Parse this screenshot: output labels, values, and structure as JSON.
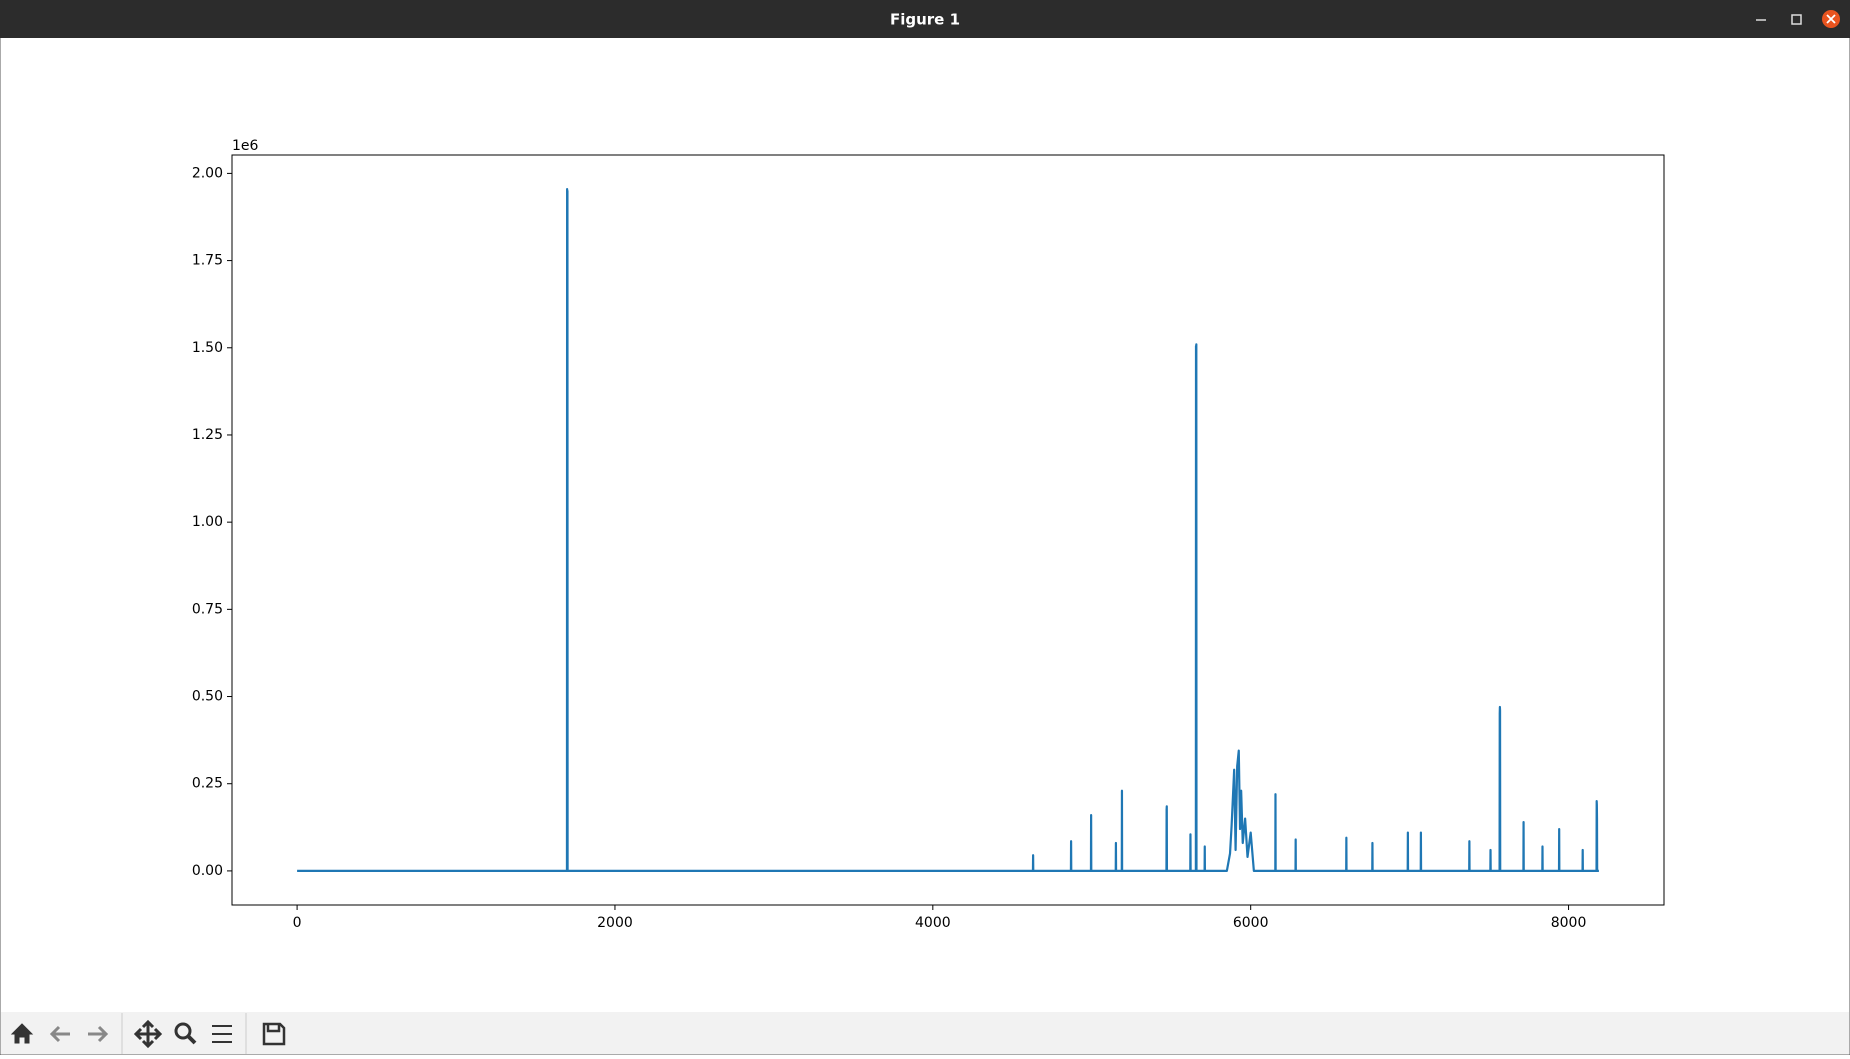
{
  "window": {
    "title": "Figure 1"
  },
  "chart_data": {
    "type": "line",
    "color": "#1f77b4",
    "x": [
      0,
      1698,
      1699,
      1700,
      1701,
      1702,
      1703,
      4630,
      4631,
      4632,
      4869,
      4870,
      4871,
      4995,
      4996,
      4997,
      5151,
      5152,
      5153,
      5189,
      5190,
      5191,
      5470,
      5471,
      5472,
      5473,
      5620,
      5621,
      5622,
      5655,
      5656,
      5657,
      5658,
      5659,
      5710,
      5711,
      5712,
      5850,
      5870,
      5880,
      5896,
      5905,
      5915,
      5925,
      5933,
      5940,
      5950,
      5965,
      5980,
      6000,
      6020,
      6155,
      6156,
      6157,
      6282,
      6283,
      6284,
      6601,
      6602,
      6603,
      6765,
      6766,
      6767,
      6988,
      6989,
      6990,
      7070,
      7071,
      7072,
      7375,
      7376,
      7377,
      7508,
      7509,
      7510,
      7566,
      7567,
      7568,
      7569,
      7570,
      7716,
      7717,
      7718,
      7835,
      7836,
      7837,
      7940,
      7941,
      7942,
      8088,
      8089,
      8090,
      8176,
      8177,
      8178,
      8179,
      8180,
      8191
    ],
    "values": [
      0,
      0,
      1955000,
      1600000,
      1950000,
      0,
      0,
      0,
      45000,
      0,
      0,
      85000,
      0,
      0,
      160000,
      0,
      0,
      80000,
      0,
      0,
      230000,
      0,
      0,
      175000,
      185000,
      0,
      0,
      105000,
      0,
      0,
      1505000,
      1240000,
      1510000,
      0,
      0,
      70000,
      0,
      0,
      50000,
      130000,
      290000,
      60000,
      300000,
      345000,
      120000,
      230000,
      80000,
      150000,
      40000,
      110000,
      0,
      0,
      220000,
      0,
      0,
      90000,
      0,
      0,
      95000,
      0,
      0,
      80000,
      0,
      0,
      110000,
      0,
      0,
      110000,
      0,
      0,
      85000,
      0,
      0,
      60000,
      0,
      0,
      450000,
      470000,
      460000,
      0,
      0,
      140000,
      0,
      0,
      70000,
      0,
      0,
      120000,
      0,
      0,
      60000,
      0,
      0,
      200000,
      190000,
      150000,
      0,
      0
    ],
    "xlim": [
      -409.55,
      8600.55
    ],
    "xticks": [
      0,
      2000,
      4000,
      6000,
      8000
    ],
    "ylim": [
      -97750,
      2052750
    ],
    "yticks": [
      {
        "value": 0,
        "label": "0.00"
      },
      {
        "value": 250000,
        "label": "0.25"
      },
      {
        "value": 500000,
        "label": "0.50"
      },
      {
        "value": 750000,
        "label": "0.75"
      },
      {
        "value": 1000000,
        "label": "1.00"
      },
      {
        "value": 1250000,
        "label": "1.25"
      },
      {
        "value": 1500000,
        "label": "1.50"
      },
      {
        "value": 1750000,
        "label": "1.75"
      },
      {
        "value": 2000000,
        "label": "2.00"
      }
    ],
    "y_offset_text": "1e6",
    "grid": false
  }
}
